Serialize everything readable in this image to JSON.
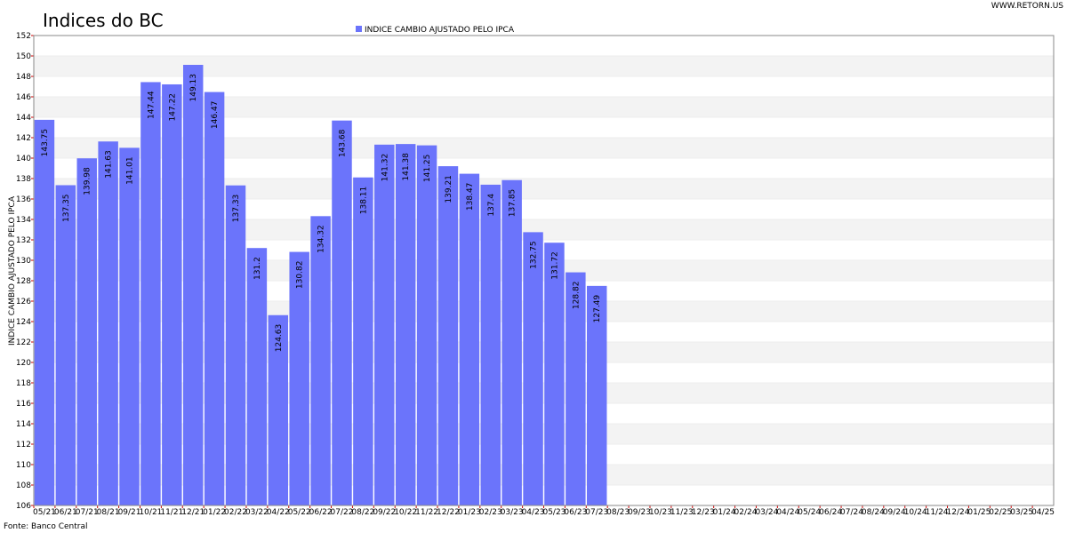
{
  "chart_data": {
    "type": "bar",
    "title": "Indices do BC",
    "watermark": "WWW.RETORN.US",
    "source": "Fonte: Banco Central",
    "y_label": "INDICE CAMBIO AJUSTADO PELO IPCA",
    "categories": [
      "05/21",
      "06/21",
      "07/21",
      "08/21",
      "09/21",
      "10/21",
      "11/21",
      "12/21",
      "01/22",
      "02/22",
      "03/22",
      "04/22",
      "05/22",
      "06/22",
      "07/22",
      "08/22",
      "09/22",
      "10/22",
      "11/22",
      "12/22",
      "01/23",
      "02/23",
      "03/23",
      "04/23",
      "05/23",
      "06/23",
      "07/23",
      "08/23",
      "09/23",
      "10/23",
      "11/23",
      "12/23",
      "01/24",
      "02/24",
      "03/24",
      "04/24",
      "05/24",
      "06/24",
      "07/24",
      "08/24",
      "09/24",
      "10/24",
      "11/24",
      "12/24",
      "01/25",
      "02/25",
      "03/25",
      "04/25"
    ],
    "series": [
      {
        "name": "INDICE CAMBIO AJUSTADO PELO IPCA",
        "color": "#6b74fb",
        "values": [
          143.75,
          137.35,
          139.98,
          141.63,
          141.01,
          147.44,
          147.22,
          149.13,
          146.47,
          137.33,
          131.2,
          124.63,
          130.82,
          134.32,
          143.68,
          138.11,
          141.32,
          141.38,
          141.25,
          139.21,
          138.47,
          137.4,
          137.85,
          132.75,
          131.72,
          128.82,
          127.49,
          null,
          null,
          null,
          null,
          null,
          null,
          null,
          null,
          null,
          null,
          null,
          null,
          null,
          null,
          null,
          null,
          null,
          null,
          null,
          null,
          null
        ]
      }
    ],
    "ylim": [
      106,
      152
    ],
    "yticks": [
      106,
      108,
      110,
      112,
      114,
      116,
      118,
      120,
      122,
      124,
      126,
      128,
      130,
      132,
      134,
      136,
      138,
      140,
      142,
      144,
      146,
      148,
      150,
      152
    ],
    "grid": true,
    "legend": "top"
  }
}
